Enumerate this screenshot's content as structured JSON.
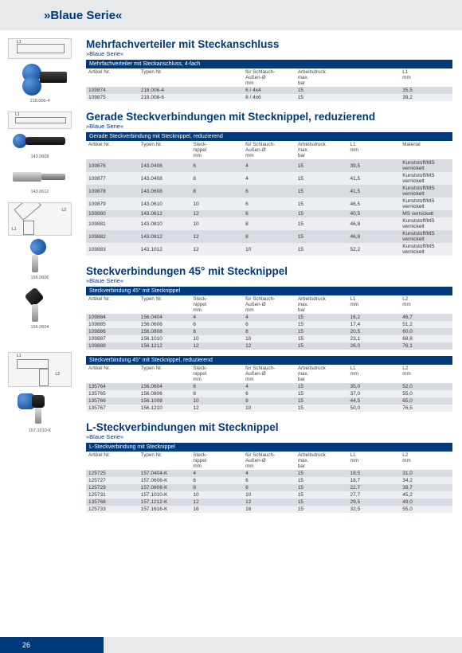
{
  "colors": {
    "brand_blue": "#003a7a",
    "header_gray": "#e8e9ea",
    "row_odd": "#d8dce2",
    "row_even": "#eceef1"
  },
  "header": {
    "title": "»Blaue Serie«"
  },
  "page_number": "26",
  "sections": [
    {
      "title": "Mehrfachverteiler mit Steckanschluss",
      "subtitle": "»Blaue Serie«",
      "caption": "218.006-4",
      "tables": [
        {
          "header": "Mehrfachverteiler mit Steckanschluss, 4-fach",
          "columns": [
            "Artikel Nr.",
            "Typen Nr.",
            "",
            "für Schlauch-\nAußen-Ø\nmm",
            "Arbeitsdruck\nmax.\nbar",
            "",
            "L1\nmm"
          ],
          "rows": [
            [
              "109874",
              "218.006-4",
              "",
              "6 / 4x4",
              "15",
              "",
              "35,5"
            ],
            [
              "109875",
              "218.008-6",
              "",
              "8 / 4x6",
              "15",
              "",
              "39,2"
            ]
          ]
        }
      ]
    },
    {
      "title": "Gerade Steckverbindungen mit Stecknippel, reduzierend",
      "subtitle": "»Blaue Serie«",
      "caption": "143.0608",
      "caption2": "143.0612",
      "tables": [
        {
          "header": "Gerade Steckverbindung mit Stecknippel, reduzierend",
          "columns": [
            "Artikel Nr.",
            "Typen Nr.",
            "Steck-\nnippel\nmm",
            "für Schlauch-\nAußen-Ø\nmm",
            "Arbeitsdruck\nmax.\nbar",
            "L1\nmm",
            "Material"
          ],
          "rows": [
            [
              "109876",
              "143.0406",
              "6",
              "4",
              "15",
              "39,5",
              "Kunststoff/MS vernickelt"
            ],
            [
              "109877",
              "143.0408",
              "8",
              "4",
              "15",
              "41,5",
              "Kunststoff/MS vernickelt"
            ],
            [
              "109878",
              "143.0608",
              "8",
              "6",
              "15",
              "41,5",
              "Kunststoff/MS vernickelt"
            ],
            [
              "109879",
              "143.0610",
              "10",
              "6",
              "15",
              "46,5",
              "Kunststoff/MS vernickelt"
            ],
            [
              "109880",
              "143.0612",
              "12",
              "6",
              "15",
              "40,5",
              "MS vernickelt"
            ],
            [
              "109881",
              "143.0810",
              "10",
              "8",
              "15",
              "46,8",
              "Kunststoff/MS vernickelt"
            ],
            [
              "109882",
              "143.0812",
              "12",
              "8",
              "15",
              "46,8",
              "Kunststoff/MS vernickelt"
            ],
            [
              "109883",
              "143.1012",
              "12",
              "10",
              "15",
              "52,2",
              "Kunststoff/MS vernickelt"
            ]
          ]
        }
      ]
    },
    {
      "title": "Steckverbindungen 45° mit Stecknippel",
      "subtitle": "»Blaue Serie«",
      "caption": "156.0606",
      "caption2": "156.0604",
      "tables": [
        {
          "header": "Steckverbindung 45° mit Stecknippel",
          "columns": [
            "Artikel Nr.",
            "Typen Nr.",
            "Steck-\nnippel\nmm",
            "für Schlauch-\nAußen-Ø\nmm",
            "Arbeitsdruck\nmax.\nbar",
            "L1\nmm",
            "L2\nmm"
          ],
          "rows": [
            [
              "109884",
              "156.0404",
              "4",
              "4",
              "15",
              "16,2",
              "46,7"
            ],
            [
              "109885",
              "156.0606",
              "6",
              "6",
              "15",
              "17,4",
              "51,2"
            ],
            [
              "109886",
              "156.0808",
              "8",
              "8",
              "15",
              "20,5",
              "60,0"
            ],
            [
              "109887",
              "156.1010",
              "10",
              "10",
              "15",
              "23,1",
              "68,8"
            ],
            [
              "109888",
              "156.1212",
              "12",
              "12",
              "15",
              "26,0",
              "76,1"
            ]
          ]
        },
        {
          "header": "Steckverbindung 45° mit Stecknippel, reduzierend",
          "columns": [
            "Artikel Nr.",
            "Typen Nr.",
            "Steck-\nnippel\nmm",
            "für Schlauch-\nAußen-Ø\nmm",
            "Arbeitsdruck\nmax.\nbar",
            "L1\nmm",
            "L2\nmm"
          ],
          "rows": [
            [
              "135764",
              "156.0604",
              "6",
              "4",
              "15",
              "35,0",
              "52,0"
            ],
            [
              "135765",
              "156.0806",
              "8",
              "6",
              "15",
              "37,0",
              "55,0"
            ],
            [
              "135766",
              "156.1008",
              "10",
              "8",
              "15",
              "44,5",
              "65,0"
            ],
            [
              "135767",
              "156.1210",
              "12",
              "10",
              "15",
              "50,0",
              "76,5"
            ]
          ]
        }
      ]
    },
    {
      "title": "L-Steckverbindungen mit Stecknippel",
      "subtitle": "»Blaue Serie«",
      "caption": "157.1010-K",
      "tables": [
        {
          "header": "L-Steckverbindung mit Stecknippel",
          "columns": [
            "Artikel Nr.",
            "Typen Nr.",
            "Steck-\nnippel\nmm",
            "für Schlauch-\nAußen-Ø\nmm",
            "Arbeitsdruck\nmax.\nbar",
            "L1\nmm",
            "L2\nmm"
          ],
          "rows": [
            [
              "125725",
              "157.0404-K",
              "4",
              "4",
              "15",
              "18,5",
              "31,0"
            ],
            [
              "125727",
              "157.0606-K",
              "6",
              "6",
              "15",
              "18,7",
              "34,2"
            ],
            [
              "125729",
              "157.0808-K",
              "8",
              "8",
              "15",
              "22,7",
              "39,7"
            ],
            [
              "125731",
              "157.1010-K",
              "10",
              "10",
              "15",
              "27,7",
              "45,2"
            ],
            [
              "135768",
              "157.1212-K",
              "12",
              "12",
              "15",
              "29,5",
              "49,0"
            ],
            [
              "125733",
              "157.1616-K",
              "16",
              "16",
              "15",
              "32,5",
              "55,0"
            ]
          ]
        }
      ]
    }
  ]
}
